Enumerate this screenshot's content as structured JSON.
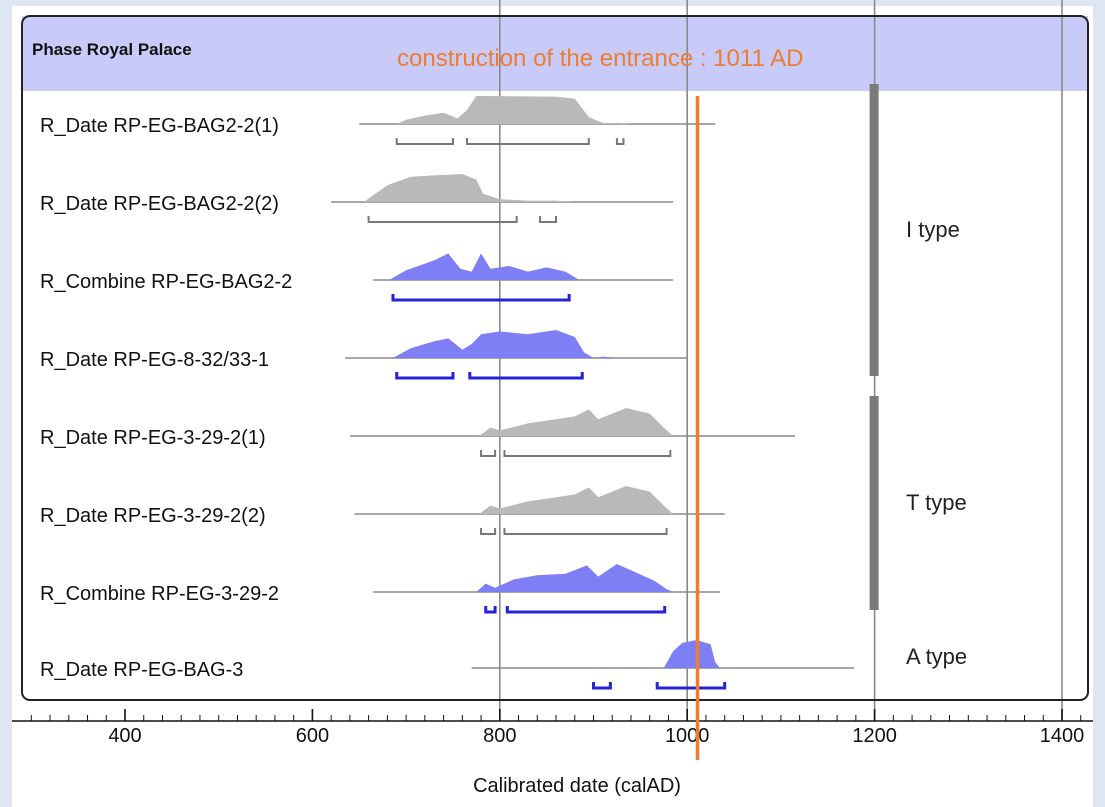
{
  "chart_data": {
    "type": "oxcal-multiplot",
    "phase_label": "Phase Royal Palace",
    "xlabel": "Calibrated date (calAD)",
    "xlim": [
      300,
      1420
    ],
    "x_ticks": [
      400,
      600,
      800,
      1000,
      1200,
      1400
    ],
    "annotation": {
      "text": "construction of the entrance : 1011 AD",
      "x": 1011,
      "color": "#ed7d31"
    },
    "rows": [
      {
        "label": "R_Date RP-EG-BAG2-2(1)",
        "kind": "date",
        "range": [
          650,
          1030
        ],
        "dist": [
          [
            690,
            0
          ],
          [
            700,
            0.15
          ],
          [
            720,
            0.3
          ],
          [
            740,
            0.4
          ],
          [
            755,
            0.2
          ],
          [
            765,
            0.5
          ],
          [
            775,
            1
          ],
          [
            860,
            0.98
          ],
          [
            880,
            0.9
          ],
          [
            895,
            0.25
          ],
          [
            905,
            0.1
          ],
          [
            915,
            0
          ],
          [
            925,
            0.05
          ],
          [
            940,
            0
          ]
        ],
        "hpd": [
          [
            690,
            750
          ],
          [
            765,
            895
          ],
          [
            925,
            932
          ]
        ]
      },
      {
        "label": "R_Date RP-EG-BAG2-2(2)",
        "kind": "date",
        "range": [
          620,
          985
        ],
        "dist": [
          [
            655,
            0
          ],
          [
            680,
            0.6
          ],
          [
            705,
            0.9
          ],
          [
            730,
            0.95
          ],
          [
            760,
            1
          ],
          [
            775,
            0.8
          ],
          [
            782,
            0.3
          ],
          [
            800,
            0.1
          ],
          [
            830,
            0.05
          ],
          [
            860,
            0.05
          ],
          [
            880,
            0
          ]
        ],
        "hpd": [
          [
            660,
            818
          ],
          [
            843,
            860
          ]
        ]
      },
      {
        "label": "R_Combine RP-EG-BAG2-2",
        "kind": "combine",
        "range": [
          665,
          985
        ],
        "dist": [
          [
            682,
            0
          ],
          [
            700,
            0.35
          ],
          [
            730,
            0.7
          ],
          [
            745,
            0.95
          ],
          [
            758,
            0.4
          ],
          [
            770,
            0.3
          ],
          [
            780,
            0.95
          ],
          [
            790,
            0.4
          ],
          [
            810,
            0.5
          ],
          [
            830,
            0.3
          ],
          [
            850,
            0.45
          ],
          [
            870,
            0.3
          ],
          [
            885,
            0
          ]
        ],
        "hpd": [
          [
            686,
            874
          ]
        ]
      },
      {
        "label": "R_Date RP-EG-8-32/33-1",
        "kind": "combine",
        "range": [
          635,
          1000
        ],
        "dist": [
          [
            686,
            0
          ],
          [
            705,
            0.35
          ],
          [
            730,
            0.6
          ],
          [
            745,
            0.7
          ],
          [
            760,
            0.3
          ],
          [
            770,
            0.5
          ],
          [
            780,
            0.85
          ],
          [
            800,
            0.95
          ],
          [
            830,
            0.85
          ],
          [
            860,
            1
          ],
          [
            880,
            0.75
          ],
          [
            890,
            0.2
          ],
          [
            900,
            0
          ],
          [
            910,
            0.05
          ],
          [
            925,
            0
          ]
        ],
        "hpd": [
          [
            690,
            750
          ],
          [
            768,
            888
          ]
        ]
      },
      {
        "label": "R_Date RP-EG-3-29-2(1)",
        "kind": "date",
        "range": [
          640,
          1115
        ],
        "dist": [
          [
            778,
            0
          ],
          [
            790,
            0.3
          ],
          [
            800,
            0.2
          ],
          [
            830,
            0.45
          ],
          [
            860,
            0.6
          ],
          [
            880,
            0.7
          ],
          [
            895,
            0.95
          ],
          [
            905,
            0.6
          ],
          [
            920,
            0.8
          ],
          [
            935,
            1
          ],
          [
            960,
            0.8
          ],
          [
            975,
            0.3
          ],
          [
            985,
            0
          ]
        ],
        "hpd": [
          [
            780,
            795
          ],
          [
            805,
            982
          ]
        ]
      },
      {
        "label": "R_Date RP-EG-3-29-2(2)",
        "kind": "date",
        "range": [
          645,
          1040
        ],
        "dist": [
          [
            778,
            0
          ],
          [
            790,
            0.3
          ],
          [
            800,
            0.2
          ],
          [
            830,
            0.45
          ],
          [
            860,
            0.6
          ],
          [
            880,
            0.7
          ],
          [
            895,
            0.95
          ],
          [
            905,
            0.6
          ],
          [
            920,
            0.8
          ],
          [
            935,
            1
          ],
          [
            960,
            0.8
          ],
          [
            975,
            0.3
          ],
          [
            985,
            0
          ]
        ],
        "hpd": [
          [
            780,
            795
          ],
          [
            805,
            978
          ]
        ]
      },
      {
        "label": "R_Combine RP-EG-3-29-2",
        "kind": "combine",
        "range": [
          665,
          1035
        ],
        "dist": [
          [
            775,
            0
          ],
          [
            785,
            0.3
          ],
          [
            795,
            0.15
          ],
          [
            815,
            0.45
          ],
          [
            840,
            0.6
          ],
          [
            870,
            0.65
          ],
          [
            893,
            0.95
          ],
          [
            905,
            0.55
          ],
          [
            925,
            1
          ],
          [
            945,
            0.7
          ],
          [
            965,
            0.4
          ],
          [
            978,
            0.1
          ],
          [
            985,
            0
          ]
        ],
        "hpd": [
          [
            785,
            795
          ],
          [
            808,
            976
          ]
        ]
      },
      {
        "label": "R_Date RP-EG-BAG-3",
        "kind": "combine",
        "range": [
          770,
          1178
        ],
        "dist": [
          [
            975,
            0
          ],
          [
            985,
            0.6
          ],
          [
            995,
            0.9
          ],
          [
            1010,
            1
          ],
          [
            1025,
            0.85
          ],
          [
            1030,
            0.2
          ],
          [
            1035,
            0
          ]
        ],
        "hpd": [
          [
            900,
            918
          ],
          [
            968,
            1040
          ]
        ]
      }
    ],
    "groups": [
      {
        "label": "I type",
        "rows": [
          0,
          3
        ]
      },
      {
        "label": "T type",
        "rows": [
          4,
          6
        ]
      },
      {
        "label": "A type",
        "rows": [
          7,
          7
        ]
      }
    ],
    "colors": {
      "date_fill": "#b9b9b9",
      "combine_fill": "#7e7ef5",
      "hpd_combine": "#2424d6",
      "hpd_date": "#777777",
      "phase_band": "#c8caf8",
      "bar": "#7a7a7a"
    }
  }
}
